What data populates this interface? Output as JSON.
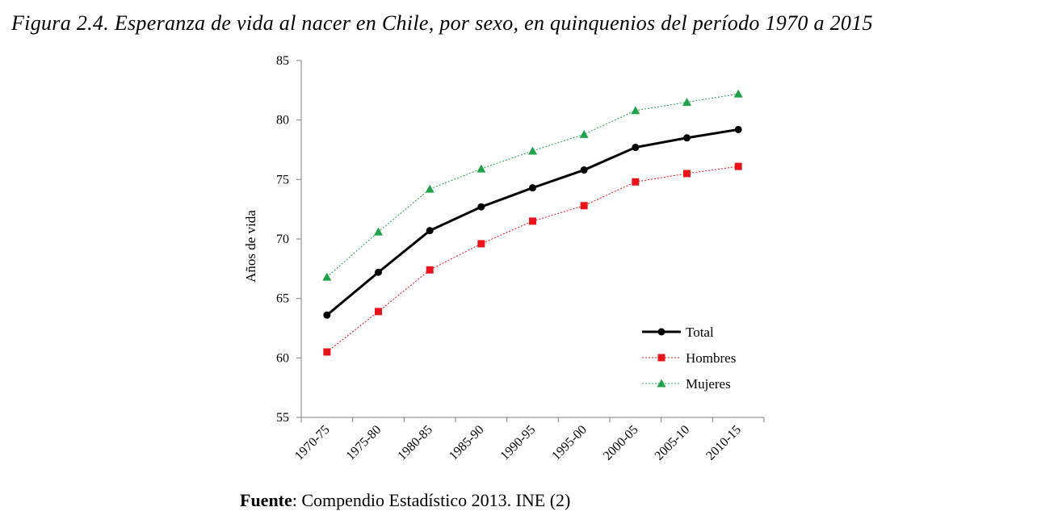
{
  "figure": {
    "title": "Figura 2.4. Esperanza de vida al nacer en Chile, por sexo, en quinquenios del período 1970 a 2015"
  },
  "source": {
    "label": "Fuente",
    "text": ": Compendio Estadístico 2013. INE (2)"
  },
  "chart_data": {
    "type": "line",
    "title": "",
    "xlabel": "",
    "ylabel": "Años de vida",
    "categories": [
      "1970-75",
      "1975-80",
      "1980-85",
      "1985-90",
      "1990-95",
      "1995-00",
      "2000-05",
      "2005-10",
      "2010-15"
    ],
    "ylim": [
      55,
      85
    ],
    "yticks": [
      55,
      60,
      65,
      70,
      75,
      80,
      85
    ],
    "grid": false,
    "legend_position": "bottom-right",
    "series": [
      {
        "name": "Total",
        "color": "#000000",
        "marker": "circle",
        "line": "solid",
        "values": [
          63.6,
          67.2,
          70.7,
          72.7,
          74.3,
          75.8,
          77.7,
          78.5,
          79.2
        ]
      },
      {
        "name": "Hombres",
        "color": "#e8141a",
        "marker": "square",
        "line": "dotted",
        "values": [
          60.5,
          63.9,
          67.4,
          69.6,
          71.5,
          72.8,
          74.8,
          75.5,
          76.1
        ]
      },
      {
        "name": "Mujeres",
        "color": "#1fa249",
        "marker": "triangle",
        "line": "dotted",
        "values": [
          66.8,
          70.6,
          74.2,
          75.9,
          77.4,
          78.8,
          80.8,
          81.5,
          82.2
        ]
      }
    ]
  }
}
